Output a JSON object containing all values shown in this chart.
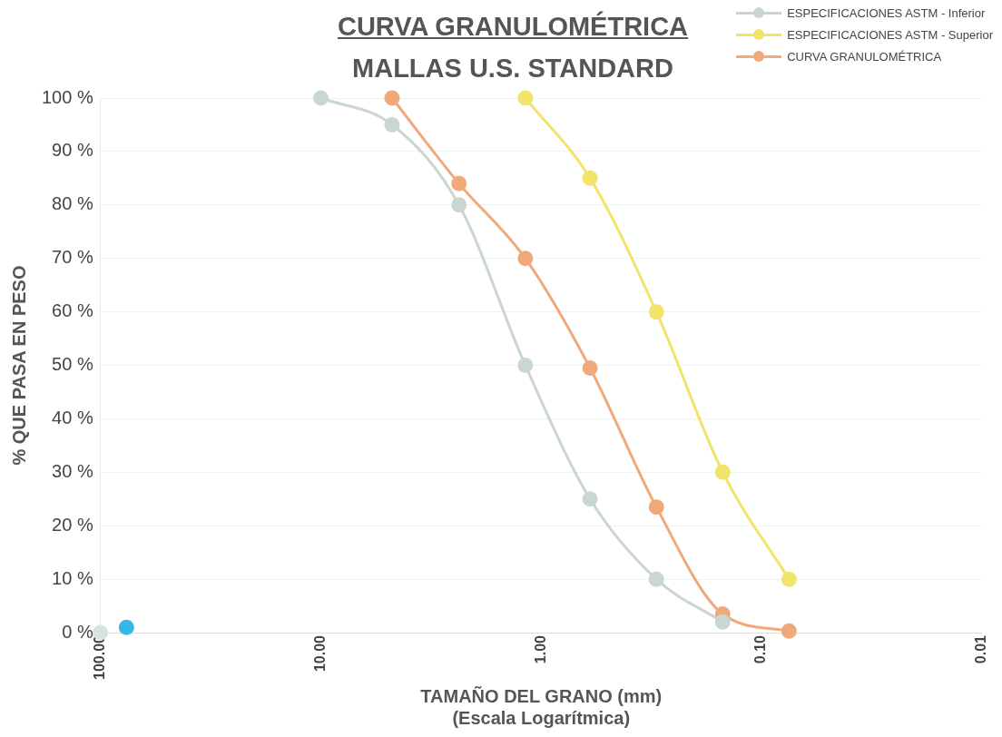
{
  "chart_data": {
    "type": "line",
    "title": "CURVA GRANULOMÉTRICA",
    "subtitle": "MALLAS U.S. STANDARD",
    "xlabel": "TAMAÑO DEL GRANO (mm)",
    "annotations": [
      "(Escala Logarítmica)"
    ],
    "ylabel": "% QUE PASA EN PESO",
    "log": "x",
    "xlim": [
      100,
      0.01
    ],
    "xticks": [
      {
        "value": 100,
        "label": "100.00"
      },
      {
        "value": 10,
        "label": "10.00"
      },
      {
        "value": 1,
        "label": "1.00"
      },
      {
        "value": 0.1,
        "label": "0.10"
      },
      {
        "value": 0.01,
        "label": "0.01"
      }
    ],
    "ylim": [
      0,
      100
    ],
    "yticks": [
      {
        "value": 0,
        "label": "0 %"
      },
      {
        "value": 10,
        "label": "10 %"
      },
      {
        "value": 20,
        "label": "20 %"
      },
      {
        "value": 30,
        "label": "30 %"
      },
      {
        "value": 40,
        "label": "40 %"
      },
      {
        "value": 50,
        "label": "50 %"
      },
      {
        "value": 60,
        "label": "60 %"
      },
      {
        "value": 70,
        "label": "70 %"
      },
      {
        "value": 80,
        "label": "80 %"
      },
      {
        "value": 90,
        "label": "90 %"
      },
      {
        "value": 100,
        "label": "100 %"
      }
    ],
    "grid": "y",
    "legend": "top right",
    "marker": "circle",
    "series": [
      {
        "name": "ESPECIFICACIONES ASTM - Inferior",
        "color": "#c9d6d2",
        "x": [
          10,
          4.75,
          2.36,
          1.18,
          0.6,
          0.3,
          0.15
        ],
        "values": [
          100,
          95,
          80,
          50,
          25,
          10,
          2
        ]
      },
      {
        "name": "ESPECIFICACIONES ASTM - Superior",
        "color": "#f2e36a",
        "x": [
          1.18,
          0.6,
          0.3,
          0.15,
          0.075
        ],
        "values": [
          100,
          85,
          60,
          30,
          10
        ]
      },
      {
        "name": "CURVA GRANULOMÉTRICA",
        "color": "#f2a97a",
        "x": [
          4.75,
          2.36,
          1.18,
          0.6,
          0.3,
          0.15,
          0.075
        ],
        "values": [
          100,
          84,
          70,
          49.5,
          23.5,
          3.5,
          0.3
        ]
      },
      {
        "type": "scatter",
        "color": "#d8e2e2",
        "x": [
          100
        ],
        "values": [
          0
        ]
      },
      {
        "type": "scatter",
        "color": "#3bb4e6",
        "x": [
          76.2
        ],
        "values": [
          1
        ]
      }
    ]
  }
}
